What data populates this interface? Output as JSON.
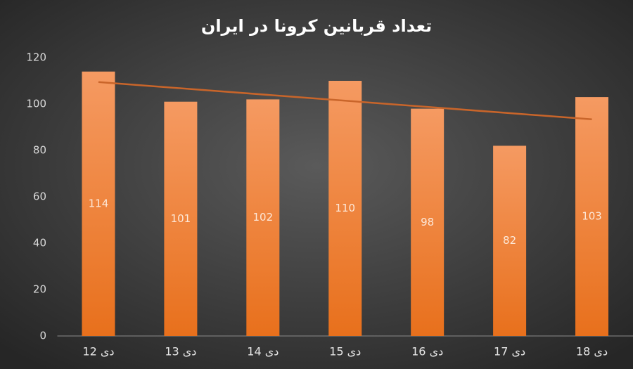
{
  "chart_data": {
    "type": "bar",
    "title": "تعداد قربانین کرونا در ایران",
    "categories": [
      "12 دی",
      "13 دی",
      "14 دی",
      "15 دی",
      "16 دی",
      "17 دی",
      "18 دی"
    ],
    "values": [
      114,
      101,
      102,
      110,
      98,
      82,
      103
    ],
    "color": "#ef7f2e",
    "trendline": "linear",
    "trendline_color": "#c9652a",
    "ylim": [
      0,
      120
    ],
    "yticks": [
      0,
      20,
      40,
      60,
      80,
      100,
      120
    ],
    "value_labels_shown": true
  }
}
